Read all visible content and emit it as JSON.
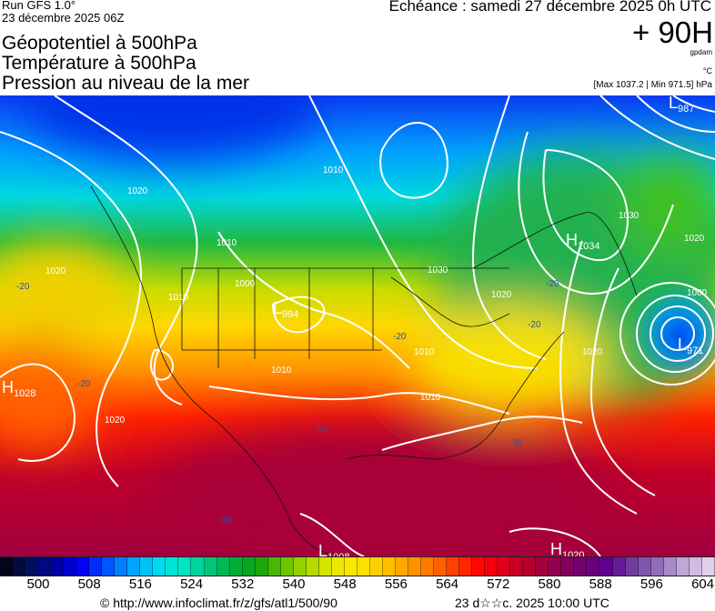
{
  "header": {
    "run": "Run GFS 1.0°",
    "run_date": "23 décembre 2025 06Z",
    "titles": [
      "Géopotentiel à 500hPa",
      "Température à 500hPa",
      "Pression au niveau de la mer"
    ],
    "echeance": "Echéance : samedi 27 décembre 2025 0h UTC",
    "lead": "+ 90H",
    "unit_geopotential": "gpdam",
    "unit_temperature": "°C",
    "pressure_range": "[Max 1037.2 | Min 971.5] hPa"
  },
  "map": {
    "pressure_centers": [
      {
        "type": "H",
        "value": "1034"
      },
      {
        "type": "L",
        "value": "971"
      },
      {
        "type": "H",
        "value": "1028"
      },
      {
        "type": "L",
        "value": "994"
      },
      {
        "type": "L",
        "value": "1008"
      },
      {
        "type": "H",
        "value": "1020"
      },
      {
        "type": "L",
        "value": "987"
      }
    ],
    "isobar_labels": [
      "1020",
      "1010",
      "1020",
      "1010",
      "1000",
      "1010",
      "1010",
      "1010",
      "1010",
      "1020",
      "1030",
      "1020",
      "1000",
      "1020",
      "1030",
      "1020"
    ],
    "temperature_labels": [
      "-20",
      "-20",
      "-20",
      "-20",
      "-20",
      "-30",
      "-10",
      "-10"
    ]
  },
  "legend": {
    "ticks": [
      "500",
      "508",
      "516",
      "524",
      "532",
      "540",
      "548",
      "556",
      "564",
      "572",
      "580",
      "588",
      "596",
      "604"
    ],
    "colors": [
      "#05051a",
      "#001060",
      "#0000a0",
      "#0000f0",
      "#0050ff",
      "#00a0ff",
      "#00d8f0",
      "#00e8c8",
      "#00c880",
      "#00b040",
      "#10a010",
      "#60c000",
      "#a8d800",
      "#e8e800",
      "#ffe800",
      "#ffc800",
      "#ffa000",
      "#ff7000",
      "#ff3800",
      "#ff0000",
      "#d80020",
      "#b00030",
      "#900050",
      "#700070",
      "#600090",
      "#7040a0",
      "#9070b8",
      "#c0a8d8",
      "#e0d0e8"
    ]
  },
  "footer": {
    "credit": "© http://www.infoclimat.fr/z/gfs/atl1/500/90",
    "generated": "23 d☆☆c. 2025 10:00 UTC"
  }
}
